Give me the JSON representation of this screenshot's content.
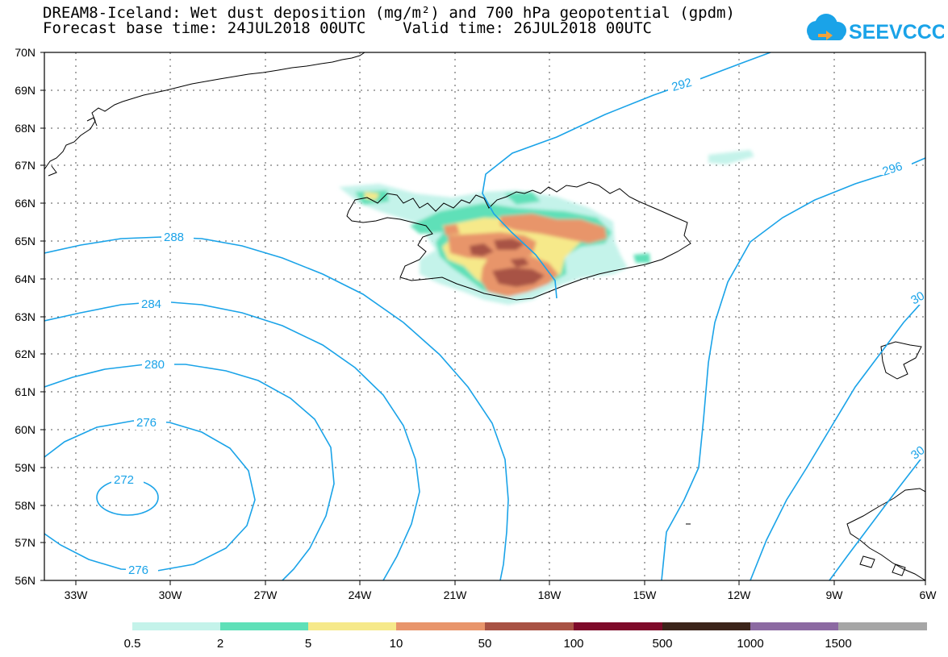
{
  "header": {
    "title_line1": "DREAM8-Iceland: Wet dust deposition (mg/m²) and 700 hPa geopotential (gpdm)",
    "title_line2": "Forecast base time: 24JUL2018 00UTC    Valid time: 26JUL2018 00UTC",
    "logo_text": "SEEVCCC"
  },
  "map": {
    "lat_labels": [
      "70N",
      "69N",
      "68N",
      "67N",
      "66N",
      "65N",
      "64N",
      "63N",
      "62N",
      "61N",
      "60N",
      "59N",
      "58N",
      "57N",
      "56N"
    ],
    "lon_labels": [
      "33W",
      "30W",
      "27W",
      "24W",
      "21W",
      "18W",
      "15W",
      "12W",
      "9W",
      "6W"
    ],
    "contour_labels": [
      "292",
      "296",
      "288",
      "284",
      "280",
      "276",
      "272",
      "276",
      "30",
      "30"
    ],
    "contour_color": "#1aa3e8",
    "coast_color": "#000000"
  },
  "colorbar": {
    "labels": [
      "0.5",
      "2",
      "5",
      "10",
      "50",
      "100",
      "500",
      "1000",
      "1500"
    ],
    "colors": [
      "#c4f3ea",
      "#5fe0b8",
      "#f6e98a",
      "#e8956b",
      "#a85244",
      "#7e0a2a",
      "#3c241a",
      "#8c6aa2",
      "#a6a6a6"
    ]
  }
}
